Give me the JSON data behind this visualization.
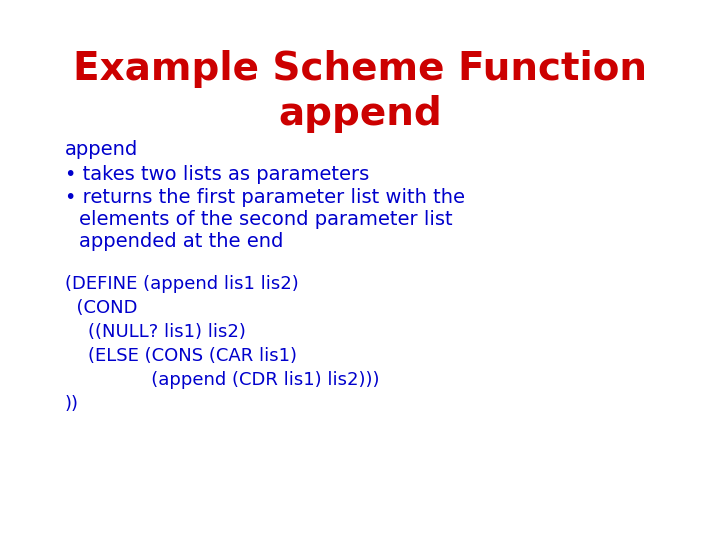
{
  "title_line1": "Example Scheme Function",
  "title_line2": "append",
  "title_color": "#CC0000",
  "title_fontsize": 28,
  "background_color": "#FFFFFF",
  "body_color": "#0000CC",
  "body_fontsize": 14,
  "code_fontsize": 13,
  "mono_font": "Courier New",
  "label_text": "append",
  "bullet1": "takes two lists as parameters",
  "bullet2_line1": "returns the first parameter list with the",
  "bullet2_line2": "  elements of the second parameter list",
  "bullet2_line3": "  appended at the end",
  "code_lines": [
    "(DEFINE (append lis1 lis2)",
    "  (COND",
    "    ((NULL? lis1) lis2)",
    "    (ELSE (CONS (CAR lis1)",
    "               (append (CDR lis1) lis2)))",
    "))"
  ],
  "bullet_char": "•"
}
